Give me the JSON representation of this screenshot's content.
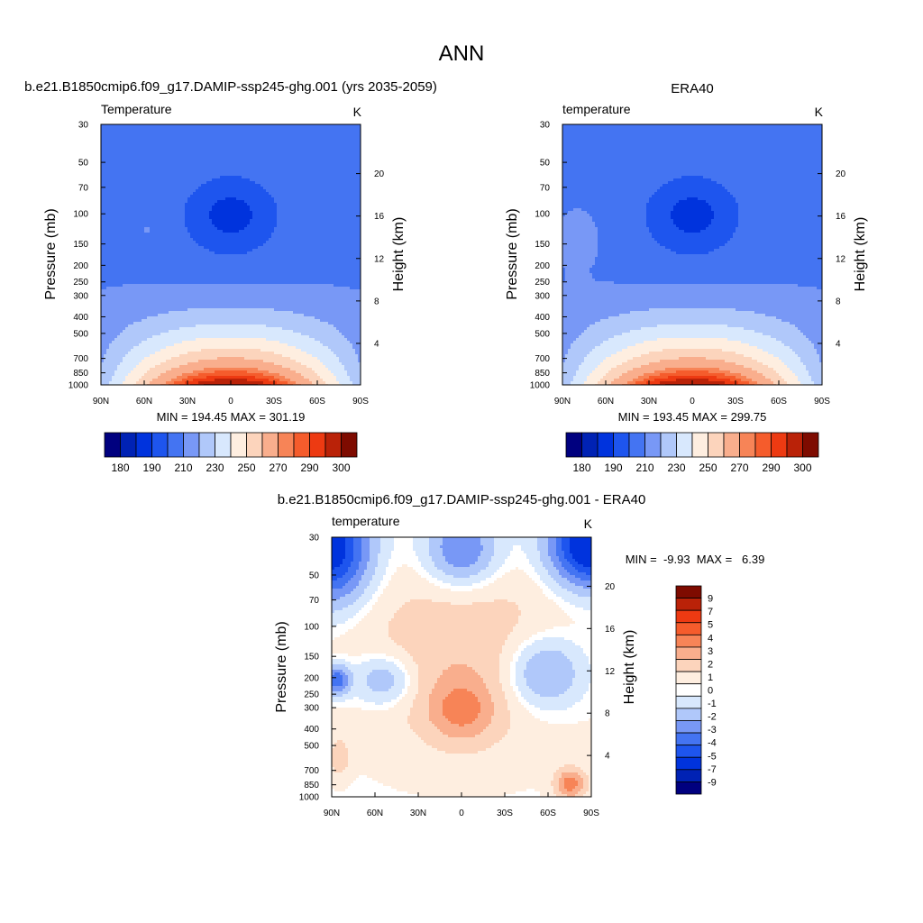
{
  "page_title": "ANN",
  "colors": {
    "temp_scale": [
      "#00007f",
      "#0022b4",
      "#0033dd",
      "#1e55ee",
      "#4474f2",
      "#7898f6",
      "#b0c8fa",
      "#d8e8fd",
      "#feeee0",
      "#fcd4bc",
      "#f9ae8d",
      "#f78457",
      "#f55c2c",
      "#ed3a12",
      "#ba2208",
      "#7e0b00"
    ],
    "diff_scale": [
      "#00007f",
      "#0022b4",
      "#0033dd",
      "#1e55ee",
      "#4474f2",
      "#7898f6",
      "#b0c8fa",
      "#d8e8fd",
      "#ffffff",
      "#feeee0",
      "#fcd4bc",
      "#f9ae8d",
      "#f78457",
      "#f55c2c",
      "#ed3a12",
      "#ba2208",
      "#7e0b00"
    ]
  },
  "chart_data": [
    {
      "type": "heatmap",
      "title": "b.e21.B1850cmip6.f09_g17.DAMIP-ssp245-ghg.001 (yrs 2035-2059)",
      "subtitle_left": "Temperature",
      "subtitle_right": "K",
      "ylabel": "Pressure (mb)",
      "ylabel_right": "Height (km)",
      "x_ticks": [
        "90N",
        "60N",
        "30N",
        "0",
        "30S",
        "60S",
        "90S"
      ],
      "y_ticks": [
        30,
        50,
        70,
        100,
        150,
        200,
        250,
        300,
        400,
        500,
        700,
        850,
        1000
      ],
      "y_right_ticks": [
        20,
        16,
        12,
        8,
        4
      ],
      "stats": "MIN = 194.45  MAX = 301.19",
      "min": 194.45,
      "max": 301.19,
      "colorbar_labels": [
        180,
        190,
        210,
        230,
        250,
        270,
        290,
        300
      ],
      "legend": "bottom"
    },
    {
      "type": "heatmap",
      "title": "ERA40",
      "subtitle_left": "temperature",
      "subtitle_right": "K",
      "ylabel": "Pressure (mb)",
      "ylabel_right": "Height (km)",
      "x_ticks": [
        "90N",
        "60N",
        "30N",
        "0",
        "30S",
        "60S",
        "90S"
      ],
      "y_ticks": [
        30,
        50,
        70,
        100,
        150,
        200,
        250,
        300,
        400,
        500,
        700,
        850,
        1000
      ],
      "y_right_ticks": [
        20,
        16,
        12,
        8,
        4
      ],
      "stats": "MIN = 193.45  MAX = 299.75",
      "min": 193.45,
      "max": 299.75,
      "colorbar_labels": [
        180,
        190,
        210,
        230,
        250,
        270,
        290,
        300
      ],
      "legend": "bottom"
    },
    {
      "type": "heatmap",
      "title": "b.e21.B1850cmip6.f09_g17.DAMIP-ssp245-ghg.001 - ERA40",
      "subtitle_left": "temperature",
      "subtitle_right": "K",
      "ylabel": "Pressure (mb)",
      "ylabel_right": "Height (km)",
      "x_ticks": [
        "90N",
        "60N",
        "30N",
        "0",
        "30S",
        "60S",
        "90S"
      ],
      "y_ticks": [
        30,
        50,
        70,
        100,
        150,
        200,
        250,
        300,
        400,
        500,
        700,
        850,
        1000
      ],
      "y_right_ticks": [
        20,
        16,
        12,
        8,
        4
      ],
      "stats": "MIN =  -9.93  MAX =   6.39",
      "min": -9.93,
      "max": 6.39,
      "colorbar_labels": [
        9,
        7,
        5,
        4,
        3,
        2,
        1,
        0,
        -1,
        -2,
        -3,
        -4,
        -5,
        -7,
        -9
      ],
      "legend": "right"
    }
  ]
}
